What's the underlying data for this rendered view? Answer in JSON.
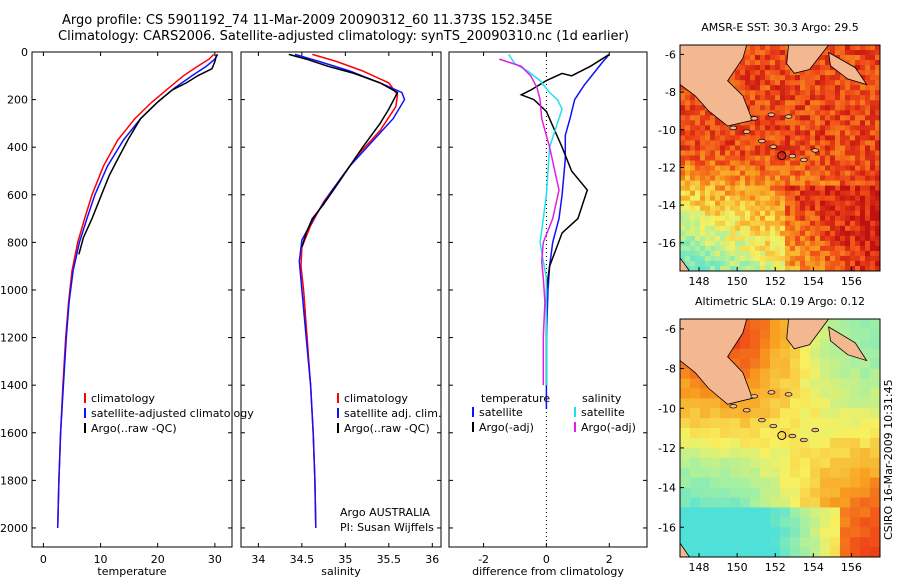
{
  "header": {
    "line1": "Argo profile: CS 5901192_74 11-Mar-2009 20090312_60 11.373S 152.345E",
    "line2": "Climatology: CARS2006. Satellite-adjusted climatology: synTS_20090310.nc (1d earlier)"
  },
  "stamp": "CSIRO 16-Mar-2009 10:31:45",
  "colors": {
    "red": "#ff0000",
    "blue": "#1010ff",
    "black": "#000000",
    "cyan": "#20e0f0",
    "magenta": "#e020e0"
  },
  "chart_data": [
    {
      "id": "temperature",
      "type": "line",
      "xlabel": "temperature",
      "ylabel": "depth",
      "xlim": [
        -2,
        33
      ],
      "ylim": [
        2080,
        0
      ],
      "xticks": [
        "0",
        "10",
        "20",
        "30"
      ],
      "yticks": [
        "0",
        "200",
        "400",
        "600",
        "800",
        "1000",
        "1200",
        "1400",
        "1600",
        "1800",
        "2000"
      ],
      "legend": [
        "climatology",
        "satellite-adjusted climatology",
        "Argo(..raw -QC)"
      ],
      "series": [
        {
          "name": "climatology",
          "color": "red",
          "points": [
            [
              29.8,
              10
            ],
            [
              29,
              30
            ],
            [
              27,
              60
            ],
            [
              24.5,
              100
            ],
            [
              22,
              150
            ],
            [
              19,
              210
            ],
            [
              16,
              280
            ],
            [
              13,
              370
            ],
            [
              10.5,
              480
            ],
            [
              8.5,
              600
            ],
            [
              7.2,
              700
            ],
            [
              6,
              800
            ],
            [
              5,
              920
            ],
            [
              4.4,
              1050
            ],
            [
              3.9,
              1200
            ],
            [
              3.4,
              1400
            ],
            [
              3,
              1600
            ],
            [
              2.7,
              1800
            ],
            [
              2.5,
              2000
            ]
          ]
        },
        {
          "name": "satellite-adjusted climatology",
          "color": "blue",
          "points": [
            [
              30.5,
              10
            ],
            [
              30,
              30
            ],
            [
              28.5,
              60
            ],
            [
              26,
              100
            ],
            [
              23,
              150
            ],
            [
              20,
              210
            ],
            [
              17,
              280
            ],
            [
              14,
              370
            ],
            [
              11.2,
              480
            ],
            [
              9,
              600
            ],
            [
              7.6,
              700
            ],
            [
              6.3,
              800
            ],
            [
              5.2,
              920
            ],
            [
              4.5,
              1050
            ],
            [
              4,
              1200
            ],
            [
              3.5,
              1400
            ],
            [
              3,
              1600
            ],
            [
              2.7,
              1800
            ],
            [
              2.5,
              2000
            ]
          ]
        },
        {
          "name": "Argo(..raw -QC)",
          "color": "black",
          "points": [
            [
              30.3,
              10
            ],
            [
              30,
              40
            ],
            [
              29.5,
              70
            ],
            [
              27,
              100
            ],
            [
              25,
              130
            ],
            [
              22.5,
              160
            ],
            [
              20,
              210
            ],
            [
              17,
              280
            ],
            [
              15,
              360
            ],
            [
              13,
              450
            ],
            [
              11.5,
              520
            ],
            [
              10.5,
              580
            ],
            [
              9.5,
              640
            ],
            [
              8.5,
              700
            ],
            [
              7,
              780
            ],
            [
              6.2,
              850
            ]
          ]
        }
      ]
    },
    {
      "id": "salinity",
      "type": "line",
      "xlabel": "salinity",
      "ylabel": "depth",
      "xlim": [
        33.8,
        36.1
      ],
      "ylim": [
        2080,
        0
      ],
      "xticks": [
        "34",
        "34.5",
        "35",
        "35.5",
        "36"
      ],
      "legend": [
        "climatology",
        "satellite adj. clim.",
        "Argo(..raw -QC)"
      ],
      "series": [
        {
          "name": "climatology",
          "color": "red",
          "points": [
            [
              34.62,
              10
            ],
            [
              34.9,
              40
            ],
            [
              35.2,
              80
            ],
            [
              35.5,
              130
            ],
            [
              35.6,
              180
            ],
            [
              35.58,
              230
            ],
            [
              35.4,
              330
            ],
            [
              35.15,
              430
            ],
            [
              34.95,
              530
            ],
            [
              34.75,
              630
            ],
            [
              34.6,
              730
            ],
            [
              34.5,
              820
            ],
            [
              34.49,
              900
            ],
            [
              34.52,
              1000
            ],
            [
              34.56,
              1200
            ],
            [
              34.6,
              1400
            ],
            [
              34.63,
              1600
            ],
            [
              34.65,
              1800
            ],
            [
              34.66,
              2000
            ]
          ]
        },
        {
          "name": "satellite adj. clim.",
          "color": "blue",
          "points": [
            [
              34.42,
              10
            ],
            [
              34.7,
              40
            ],
            [
              35.05,
              80
            ],
            [
              35.4,
              130
            ],
            [
              35.65,
              170
            ],
            [
              35.68,
              200
            ],
            [
              35.55,
              280
            ],
            [
              35.3,
              380
            ],
            [
              35.05,
              480
            ],
            [
              34.85,
              580
            ],
            [
              34.65,
              690
            ],
            [
              34.5,
              790
            ],
            [
              34.47,
              880
            ],
            [
              34.5,
              1000
            ],
            [
              34.55,
              1200
            ],
            [
              34.6,
              1400
            ],
            [
              34.63,
              1600
            ],
            [
              34.65,
              1800
            ],
            [
              34.66,
              2000
            ]
          ]
        },
        {
          "name": "Argo(..raw -QC)",
          "color": "black",
          "points": [
            [
              34.35,
              10
            ],
            [
              34.55,
              30
            ],
            [
              34.8,
              60
            ],
            [
              35.1,
              90
            ],
            [
              35.4,
              130
            ],
            [
              35.6,
              170
            ],
            [
              35.5,
              240
            ],
            [
              35.4,
              300
            ],
            [
              35.2,
              400
            ],
            [
              35.05,
              480
            ],
            [
              34.9,
              560
            ],
            [
              34.75,
              640
            ],
            [
              34.62,
              700
            ],
            [
              34.55,
              760
            ],
            [
              34.5,
              820
            ]
          ]
        }
      ],
      "annotation": [
        "Argo AUSTRALIA",
        "PI: Susan Wijffels"
      ]
    },
    {
      "id": "difference",
      "type": "line",
      "xlabel": "difference from climatology",
      "ylabel": "depth",
      "xlim": [
        -3.1,
        3.2
      ],
      "ylim": [
        2080,
        0
      ],
      "xticks": [
        "-2",
        "0",
        "2"
      ],
      "legend_temperature_title": "temperature",
      "legend_salinity_title": "salinity",
      "legend": [
        "satellite",
        "Argo(-adj)",
        "satellite",
        "Argo(-adj)"
      ],
      "series": [
        {
          "name": "temperature satellite",
          "color": "blue",
          "points": [
            [
              2,
              10
            ],
            [
              1.8,
              40
            ],
            [
              1.5,
              90
            ],
            [
              1.2,
              140
            ],
            [
              0.9,
              200
            ],
            [
              0.75,
              280
            ],
            [
              0.6,
              350
            ],
            [
              0.6,
              450
            ],
            [
              0.5,
              600
            ],
            [
              0.4,
              700
            ],
            [
              0.2,
              800
            ],
            [
              0.1,
              900
            ],
            [
              0.05,
              1000
            ],
            [
              0,
              1200
            ],
            [
              0,
              1400
            ],
            [
              0,
              1500
            ]
          ]
        },
        {
          "name": "temperature Argo(-adj)",
          "color": "black",
          "points": [
            [
              2,
              10
            ],
            [
              1.4,
              60
            ],
            [
              0.8,
              100
            ],
            [
              0.5,
              90
            ],
            [
              0,
              120
            ],
            [
              -0.5,
              160
            ],
            [
              -0.8,
              180
            ],
            [
              -0.4,
              200
            ],
            [
              0,
              250
            ],
            [
              0.5,
              400
            ],
            [
              0.8,
              500
            ],
            [
              1.3,
              580
            ],
            [
              1,
              700
            ],
            [
              0.5,
              760
            ],
            [
              0.3,
              830
            ],
            [
              0.1,
              900
            ],
            [
              0,
              1000
            ],
            [
              0,
              1200
            ],
            [
              0,
              1400
            ]
          ]
        },
        {
          "name": "salinity satellite",
          "color": "cyan",
          "points": [
            [
              -1.2,
              10
            ],
            [
              -1,
              50
            ],
            [
              -0.6,
              80
            ],
            [
              -0.2,
              120
            ],
            [
              0.1,
              170
            ],
            [
              0.35,
              200
            ],
            [
              0.5,
              240
            ],
            [
              0.35,
              300
            ],
            [
              0.1,
              400
            ],
            [
              0.05,
              500
            ],
            [
              0,
              600
            ],
            [
              -0.1,
              700
            ],
            [
              -0.2,
              800
            ],
            [
              -0.1,
              880
            ],
            [
              0,
              950
            ],
            [
              0,
              1200
            ],
            [
              0,
              1400
            ]
          ]
        },
        {
          "name": "salinity Argo(-adj)",
          "color": "magenta",
          "points": [
            [
              -1.5,
              30
            ],
            [
              -0.8,
              60
            ],
            [
              -0.5,
              100
            ],
            [
              -0.3,
              150
            ],
            [
              -0.2,
              200
            ],
            [
              -0.15,
              280
            ],
            [
              0.1,
              400
            ],
            [
              0.4,
              580
            ],
            [
              0.2,
              700
            ],
            [
              -0.1,
              800
            ],
            [
              -0.15,
              880
            ],
            [
              -0.1,
              950
            ],
            [
              -0.05,
              1050
            ],
            [
              -0.1,
              1200
            ],
            [
              -0.1,
              1400
            ]
          ]
        }
      ]
    },
    {
      "id": "sst-map",
      "type": "heatmap",
      "title": "AMSR-E SST: 30.3 Argo: 29.5",
      "xlim": [
        147,
        157.5
      ],
      "ylim": [
        -17.5,
        -5.5
      ],
      "xticks": [
        "148",
        "150",
        "152",
        "154",
        "156"
      ],
      "yticks": [
        "-6",
        "-8",
        "-10",
        "-12",
        "-14",
        "-16"
      ],
      "argo_location": [
        152.345,
        -11.373
      ]
    },
    {
      "id": "sla-map",
      "type": "heatmap",
      "title": "Altimetric SLA: 0.19 Argo: 0.12",
      "xlim": [
        147,
        157.5
      ],
      "ylim": [
        -17.5,
        -5.5
      ],
      "xticks": [
        "148",
        "150",
        "152",
        "154",
        "156"
      ],
      "yticks": [
        "-6",
        "-8",
        "-10",
        "-12",
        "-14",
        "-16"
      ],
      "argo_location": [
        152.345,
        -11.373
      ]
    }
  ]
}
